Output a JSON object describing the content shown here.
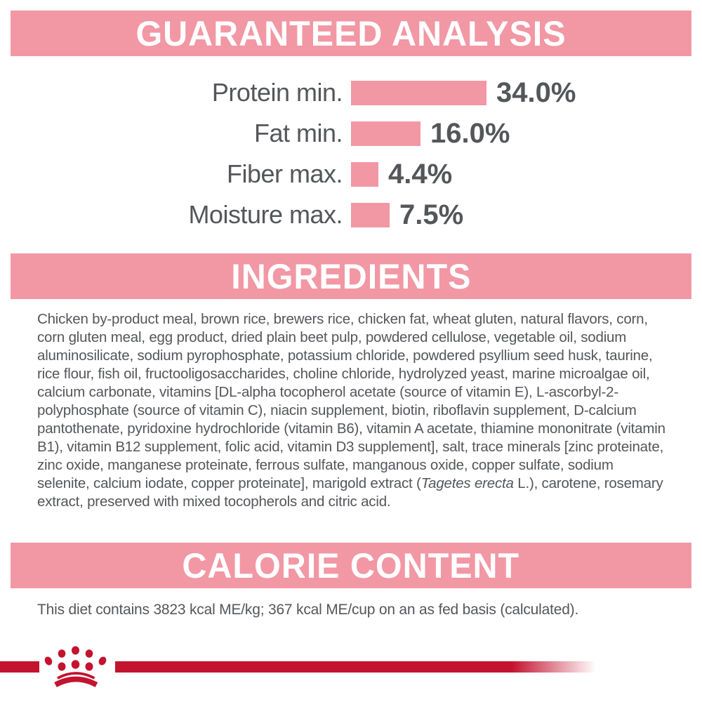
{
  "label": {
    "kind": "pet food guaranteed analysis label"
  },
  "colors": {
    "pink": "#F297A4",
    "text_gray": "#54565A",
    "brand_red": "#C3132F",
    "header_text": "#FFFFFF",
    "background": "#FFFFFF"
  },
  "sections": {
    "guaranteed_analysis": {
      "title": "GUARANTEED ANALYSIS"
    },
    "ingredients": {
      "title": "INGREDIENTS",
      "text_part1": "Chicken by-product meal, brown rice, brewers rice, chicken fat, wheat gluten, natural flavors, corn, corn gluten meal, egg product, dried plain beet pulp, powdered cellulose, vegetable oil, sodium aluminosilicate, sodium pyrophosphate, potassium chloride, powdered psyllium seed husk, taurine, rice flour, fish oil, fructooligosaccharides, choline chloride, hydrolyzed yeast, marine microalgae oil, calcium carbonate, vitamins [DL-alpha tocopherol acetate (source of vitamin E), L-ascorbyl-2-polyphosphate (source of vitamin C), niacin supplement, biotin, riboflavin supplement, D-calcium pantothenate, pyridoxine hydrochloride (vitamin B6), vitamin A acetate, thiamine mononitrate (vitamin B1), vitamin B12 supplement, folic acid, vitamin D3 supplement], salt, trace minerals [zinc proteinate, zinc oxide, manganese proteinate, ferrous sulfate, manganous oxide, copper sulfate, sodium selenite, calcium iodate, copper proteinate], marigold extract (",
      "text_italic": "Tagetes erecta",
      "text_part3": " L.), carotene, rosemary extract, preserved with mixed tocopherols and citric acid."
    },
    "calorie_content": {
      "title": "CALORIE CONTENT",
      "text": "This diet contains 3823 kcal ME/kg; 367 kcal ME/cup on an as fed basis (calculated)."
    }
  },
  "chart_data": {
    "type": "bar",
    "orientation": "horizontal",
    "title": "GUARANTEED ANALYSIS",
    "categories": [
      "Protein min.",
      "Fat min.",
      "Fiber max.",
      "Moisture max."
    ],
    "values": [
      34.0,
      16.0,
      4.4,
      7.5
    ],
    "value_labels": [
      "34.0%",
      "16.0%",
      "4.4%",
      "7.5%"
    ],
    "unit": "%",
    "bar_color": "#F297A4",
    "axis": "none",
    "grid": false,
    "legend": false,
    "rows": [
      {
        "label": "Protein min.",
        "value": 34.0,
        "display": "34.0%"
      },
      {
        "label": "Fat min.",
        "value": 16.0,
        "display": "16.0%"
      },
      {
        "label": "Fiber max.",
        "value": 4.4,
        "display": "4.4%"
      },
      {
        "label": "Moisture max.",
        "value": 7.5,
        "display": "7.5%"
      }
    ]
  },
  "footer": {
    "logo_icon": "royal-canin-crown-icon"
  }
}
